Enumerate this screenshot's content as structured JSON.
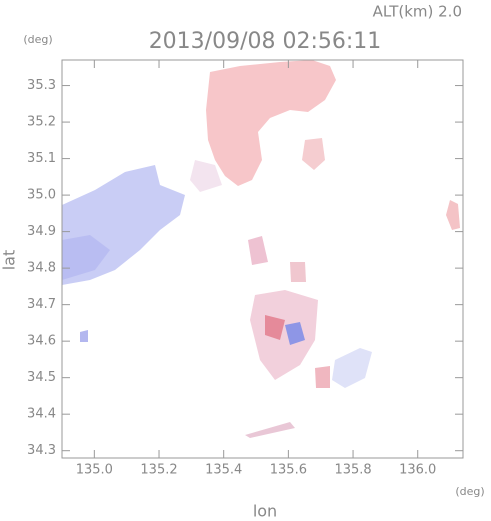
{
  "chart_data": {
    "type": "radar-map",
    "title": "2013/09/08 02:56:11",
    "subtitle": "ALT(km) 2.0",
    "x_label": "lon",
    "y_label": "lat",
    "x_unit": "(deg)",
    "y_unit": "(deg)",
    "xlim": [
      134.9,
      136.14
    ],
    "ylim": [
      34.28,
      35.37
    ],
    "xticks": [
      {
        "value": 135,
        "label": "135.0"
      },
      135.2,
      135.4,
      135.6,
      135.8,
      {
        "value": 136,
        "label": "136.0"
      }
    ],
    "yticks": [
      34.3,
      34.4,
      34.5,
      34.6,
      34.7,
      34.8,
      34.9,
      {
        "value": 35,
        "label": "35.0"
      },
      35.1,
      35.2,
      35.3
    ]
  }
}
